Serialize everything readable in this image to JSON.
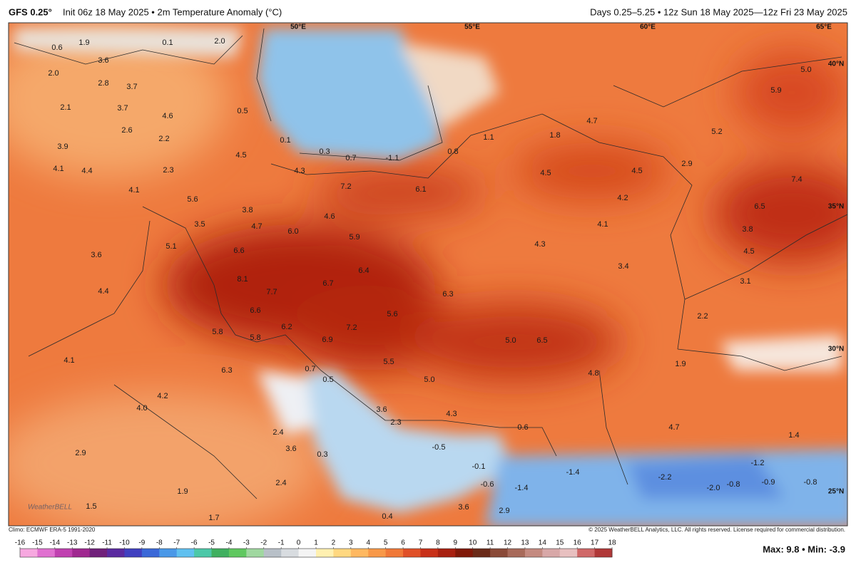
{
  "header": {
    "model": "GFS 0.25°",
    "info": "Init 06z 18 May 2025 • 2m Temperature Anomaly (°C)",
    "valid": "Days 0.25–5.25 • 12z Sun 18 May 2025—12z Fri 23 May 2025"
  },
  "map": {
    "graticule": [
      "50°E",
      "55°E",
      "60°E",
      "65°E",
      "40°N",
      "35°N",
      "30°N",
      "25°N"
    ],
    "labels": [
      "0.6",
      "1.9",
      "3.6",
      "0.1",
      "2.0",
      "2.0",
      "2.8",
      "3.7",
      "2.1",
      "4.6",
      "3.7",
      "2.6",
      "2.2",
      "0.5",
      "0.1",
      "0.3",
      "0.7",
      "-1.1",
      "0.8",
      "1.1",
      "1.8",
      "4.7",
      "5.2",
      "5.9",
      "5.0",
      "3.9",
      "4.1",
      "4.4",
      "2.3",
      "4.5",
      "4.3",
      "7.2",
      "6.1",
      "4.5",
      "4.5",
      "2.9",
      "7.4",
      "4.1",
      "5.6",
      "3.8",
      "4.6",
      "4.2",
      "6.5",
      "3.5",
      "4.7",
      "6.0",
      "5.9",
      "4.1",
      "3.8",
      "5.1",
      "6.6",
      "4.3",
      "4.5",
      "3.6",
      "8.1",
      "6.4",
      "3.4",
      "3.1",
      "7.7",
      "6.7",
      "4.4",
      "6.3",
      "6.6",
      "5.6",
      "2.2",
      "5.8",
      "5.8",
      "6.2",
      "7.2",
      "5.0",
      "6.5",
      "6.9",
      "4.1",
      "5.5",
      "1.9",
      "6.3",
      "0.7",
      "0.5",
      "5.0",
      "4.8",
      "4.2",
      "4.0",
      "3.6",
      "4.3",
      "2.3",
      "2.4",
      "4.7",
      "1.4",
      "0.6",
      "3.6",
      "0.3",
      "-0.5",
      "2.9",
      "-1.2",
      "-0.1",
      "-1.4",
      "-2.2",
      "1.9",
      "2.4",
      "-0.6",
      "-2.0",
      "-0.8",
      "-0.9",
      "-0.8",
      "1.5",
      "1.7",
      "0.4",
      "3.6",
      "2.9",
      "-1.4"
    ]
  },
  "footer": {
    "climo": "Climo: ECMWF ERA-5 1991-2020",
    "copyright": "© 2025 WeatherBELL Analytics, LLC. All rights reserved. License required for commercial distribution.",
    "logo": "WeatherBELL",
    "maxmin": "Max: 9.8 • Min: -3.9",
    "colorbar_ticks": [
      -16,
      -15,
      -14,
      -13,
      -12,
      -11,
      -10,
      -9,
      -8,
      -7,
      -6,
      -5,
      -4,
      -3,
      -2,
      -1,
      0,
      1,
      2,
      3,
      4,
      5,
      6,
      7,
      8,
      9,
      10,
      11,
      12,
      13,
      14,
      15,
      16,
      17,
      18
    ]
  }
}
